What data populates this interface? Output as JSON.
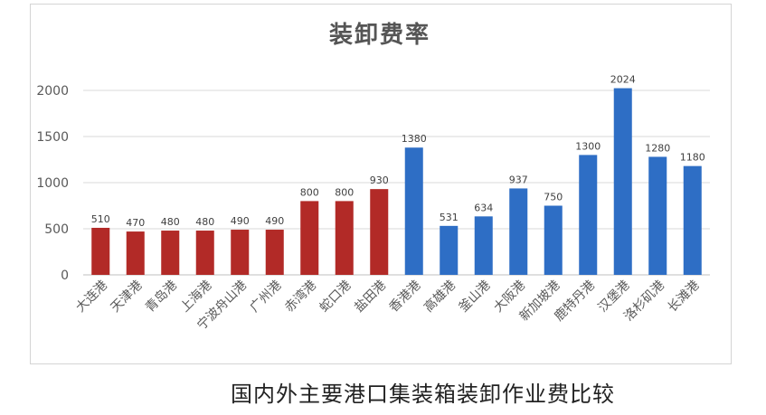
{
  "chart_data": {
    "type": "bar",
    "title": "装卸费率",
    "categories": [
      "大连港",
      "天津港",
      "青岛港",
      "上海港",
      "宁波舟山港",
      "广州港",
      "赤湾港",
      "蛇口港",
      "盐田港",
      "香港港",
      "高雄港",
      "釜山港",
      "大阪港",
      "新加坡港",
      "鹿特丹港",
      "汉堡港",
      "洛杉矶港",
      "长滩港"
    ],
    "values": [
      510,
      470,
      480,
      480,
      490,
      490,
      800,
      800,
      930,
      1380,
      531,
      634,
      937,
      750,
      1300,
      2024,
      1280,
      1180
    ],
    "data_labels": [
      "510",
      "470",
      "480",
      "480",
      "490",
      "490",
      "800",
      "800",
      "930",
      "1380",
      "531",
      "634",
      "937",
      "750",
      "1300",
      "2024",
      "1280",
      "1180"
    ],
    "ylim": [
      0,
      2000
    ],
    "yticks": [
      "0",
      "500",
      "1000",
      "1500",
      "2000"
    ],
    "xlabel": "",
    "ylabel": "",
    "grid": true,
    "legend": "none",
    "colors": {
      "domestic": "#b22a27",
      "foreign": "#2e6ec5"
    },
    "domestic_count": 9
  },
  "caption": "国内外主要港口集装箱装卸作业费比较"
}
